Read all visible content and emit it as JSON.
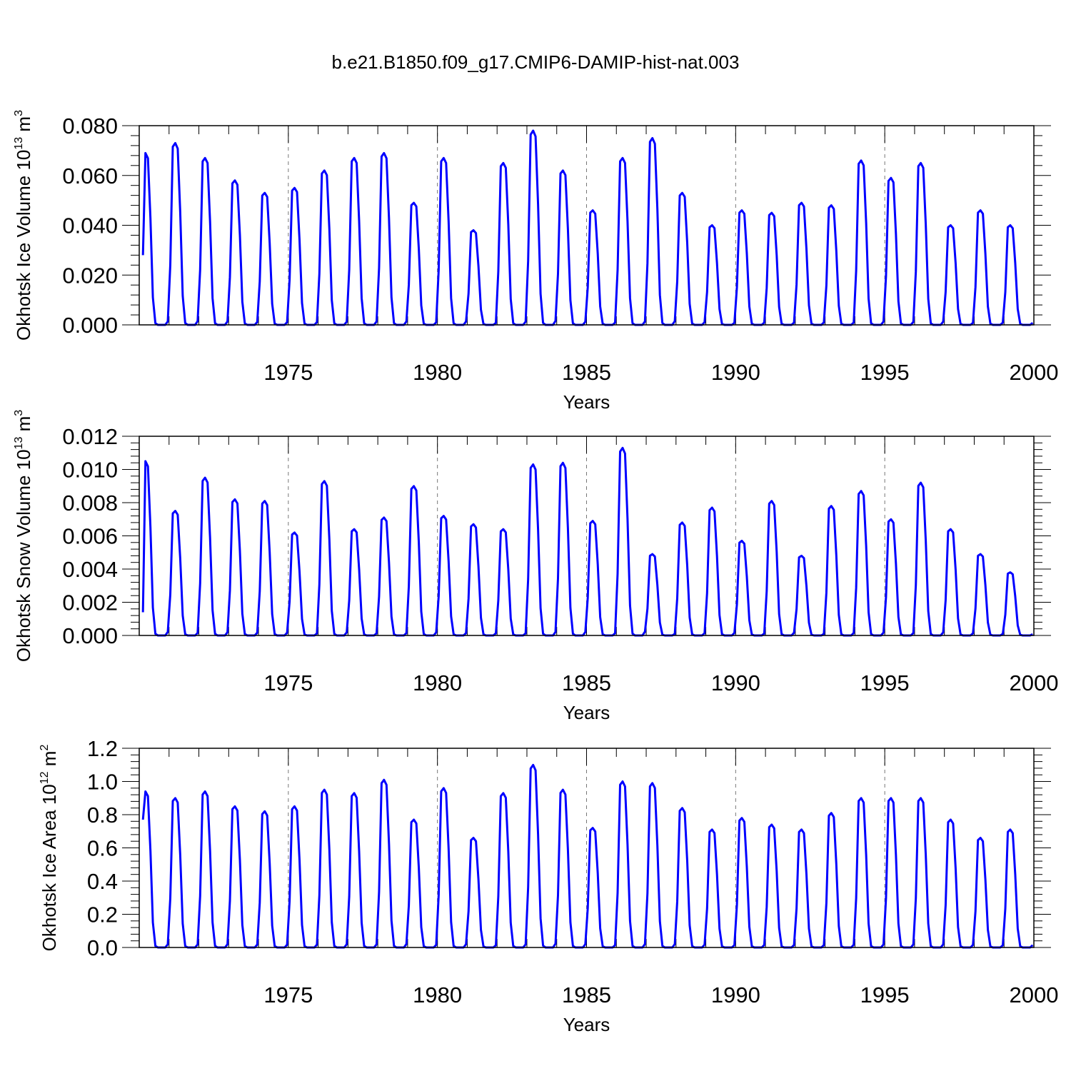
{
  "figure": {
    "title": "b.e21.B1850.f09_g17.CMIP6-DAMIP-hist-nat.003"
  },
  "chart_data": [
    {
      "type": "line",
      "title": "b.e21.B1850.f09_g17.CMIP6-DAMIP-hist-nat.003",
      "xlabel": "Years",
      "ylabel": "Okhotsk Ice Volume 10^13 m^3",
      "ylabel_parts": {
        "main": "Okhotsk Ice Volume 10",
        "exp": "13",
        "unit": " m",
        "unit_exp": "3"
      },
      "x_ticks": [
        "1975",
        "1980",
        "1985",
        "1990",
        "1995",
        "2000"
      ],
      "y_ticks": [
        "0.000",
        "0.020",
        "0.040",
        "0.060",
        "0.080"
      ],
      "xlim": [
        1970,
        2000
      ],
      "ylim": [
        0,
        0.08
      ],
      "grid": "dashed vertical lines at 5-year ticks",
      "series": [
        {
          "color": "#0000ff",
          "start_year": 1970,
          "annual_peaks": [
            0.069,
            0.073,
            0.067,
            0.058,
            0.053,
            0.055,
            0.062,
            0.067,
            0.069,
            0.049,
            0.067,
            0.038,
            0.065,
            0.078,
            0.062,
            0.046,
            0.067,
            0.075,
            0.053,
            0.04,
            0.046,
            0.045,
            0.049,
            0.048,
            0.066,
            0.059,
            0.065,
            0.04,
            0.046,
            0.04
          ],
          "first_value": 0.028,
          "last_value": 0.001
        }
      ]
    },
    {
      "type": "line",
      "xlabel": "Years",
      "ylabel": "Okhotsk Snow Volume 10^13 m^3",
      "ylabel_parts": {
        "main": "Okhotsk Snow Volume 10",
        "exp": "13",
        "unit": " m",
        "unit_exp": "3"
      },
      "x_ticks": [
        "1975",
        "1980",
        "1985",
        "1990",
        "1995",
        "2000"
      ],
      "y_ticks": [
        "0.000",
        "0.002",
        "0.004",
        "0.006",
        "0.008",
        "0.010",
        "0.012"
      ],
      "xlim": [
        1970,
        2000
      ],
      "ylim": [
        0,
        0.012
      ],
      "grid": "dashed vertical lines at 5-year ticks",
      "series": [
        {
          "color": "#0000ff",
          "start_year": 1970,
          "annual_peaks": [
            0.0105,
            0.0075,
            0.0095,
            0.0082,
            0.0081,
            0.0062,
            0.0093,
            0.0064,
            0.0071,
            0.009,
            0.0072,
            0.0067,
            0.0064,
            0.0103,
            0.0104,
            0.0069,
            0.0113,
            0.0049,
            0.0068,
            0.0077,
            0.0057,
            0.0081,
            0.0048,
            0.0078,
            0.0087,
            0.007,
            0.0092,
            0.0064,
            0.0049,
            0.0038
          ],
          "first_value": 0.0014,
          "last_value": 0.0001
        }
      ]
    },
    {
      "type": "line",
      "xlabel": "Years",
      "ylabel": "Okhotsk Ice Area 10^12 m^2",
      "ylabel_parts": {
        "main": "Okhotsk Ice Area 10",
        "exp": "12",
        "unit": " m",
        "unit_exp": "2"
      },
      "x_ticks": [
        "1975",
        "1980",
        "1985",
        "1990",
        "1995",
        "2000"
      ],
      "y_ticks": [
        "0.0",
        "0.2",
        "0.4",
        "0.6",
        "0.8",
        "1.0",
        "1.2"
      ],
      "xlim": [
        1970,
        2000
      ],
      "ylim": [
        0,
        1.2
      ],
      "grid": "dashed vertical lines at 5-year ticks",
      "series": [
        {
          "color": "#0000ff",
          "start_year": 1970,
          "annual_peaks": [
            0.94,
            0.9,
            0.94,
            0.85,
            0.82,
            0.85,
            0.95,
            0.93,
            1.01,
            0.77,
            0.96,
            0.66,
            0.93,
            1.1,
            0.95,
            0.72,
            1.0,
            0.99,
            0.84,
            0.71,
            0.78,
            0.74,
            0.71,
            0.81,
            0.9,
            0.9,
            0.9,
            0.77,
            0.66,
            0.71
          ],
          "first_value": 0.77,
          "last_value": 0.05
        }
      ]
    }
  ]
}
